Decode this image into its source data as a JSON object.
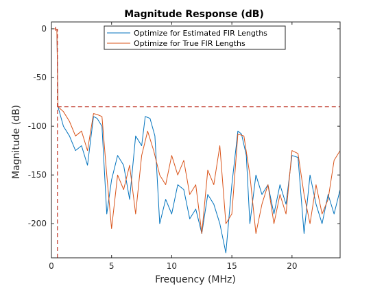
{
  "chart_data": {
    "type": "line",
    "title": "Magnitude Response (dB)",
    "xlabel": "Frequency (MHz)",
    "ylabel": "Magnitude (dB)",
    "xlim": [
      0,
      24
    ],
    "ylim": [
      -235,
      7
    ],
    "x_ticks": [
      0,
      5,
      10,
      15,
      20
    ],
    "y_ticks": [
      0,
      -50,
      -100,
      -150,
      -200
    ],
    "grid": true,
    "legend_position": "top-center",
    "series": [
      {
        "name": "Optimize for Estimated FIR Lengths",
        "color": "#0072BD",
        "x": [
          0,
          0.3,
          0.45,
          0.5,
          0.55,
          1.0,
          1.5,
          2.0,
          2.5,
          3.0,
          3.5,
          3.8,
          4.2,
          4.6,
          5.0,
          5.5,
          6.0,
          6.5,
          7.0,
          7.5,
          7.8,
          8.2,
          8.6,
          9.0,
          9.5,
          10.0,
          10.5,
          11.0,
          11.5,
          12.0,
          12.5,
          13.0,
          13.5,
          14.0,
          14.5,
          15.0,
          15.5,
          15.8,
          16.2,
          16.5,
          17.0,
          17.5,
          18.0,
          18.5,
          19.0,
          19.5,
          20.0,
          20.5,
          21.0,
          21.5,
          22.0,
          22.5,
          23.0,
          23.5,
          24.0
        ],
        "y": [
          0,
          0,
          -0.5,
          -40,
          -80,
          -100,
          -110,
          -125,
          -120,
          -140,
          -90,
          -92,
          -100,
          -190,
          -155,
          -130,
          -140,
          -175,
          -110,
          -120,
          -90,
          -92,
          -110,
          -200,
          -175,
          -190,
          -160,
          -165,
          -195,
          -185,
          -210,
          -170,
          -180,
          -200,
          -230,
          -160,
          -105,
          -108,
          -130,
          -200,
          -150,
          -170,
          -160,
          -190,
          -160,
          -180,
          -130,
          -132,
          -210,
          -150,
          -180,
          -200,
          -170,
          -190,
          -165
        ]
      },
      {
        "name": "Optimize for True FIR Lengths",
        "color": "#D95319",
        "x": [
          0,
          0.3,
          0.45,
          0.5,
          0.55,
          1.0,
          1.5,
          2.0,
          2.5,
          3.0,
          3.5,
          3.8,
          4.2,
          4.6,
          5.0,
          5.5,
          6.0,
          6.5,
          7.0,
          7.5,
          8.0,
          8.5,
          9.0,
          9.5,
          10.0,
          10.5,
          11.0,
          11.5,
          12.0,
          12.5,
          13.0,
          13.5,
          14.0,
          14.5,
          15.0,
          15.5,
          16.0,
          16.5,
          17.0,
          17.5,
          18.0,
          18.5,
          19.0,
          19.5,
          20.0,
          20.5,
          21.0,
          21.5,
          22.0,
          22.5,
          23.0,
          23.5,
          24.0
        ],
        "y": [
          0,
          0,
          -0.5,
          -40,
          -80,
          -85,
          -95,
          -110,
          -105,
          -125,
          -87,
          -88,
          -90,
          -150,
          -205,
          -150,
          -165,
          -140,
          -190,
          -130,
          -105,
          -125,
          -150,
          -160,
          -130,
          -150,
          -135,
          -170,
          -160,
          -210,
          -145,
          -160,
          -120,
          -200,
          -190,
          -108,
          -110,
          -150,
          -210,
          -180,
          -160,
          -200,
          -170,
          -190,
          -125,
          -128,
          -170,
          -200,
          -160,
          -190,
          -175,
          -135,
          -125
        ]
      }
    ],
    "annotations": [
      {
        "kind": "limit-line",
        "style": "dashed",
        "color": "#C0392B",
        "y": -80,
        "x_from": 0.5,
        "x_to": 24
      },
      {
        "kind": "limit-line",
        "style": "dashed",
        "color": "#C0392B",
        "x": 0.5,
        "y_from": -235,
        "y_to": 0
      },
      {
        "kind": "limit-line",
        "style": "dashed",
        "color": "#C0392B",
        "x": 0.35,
        "y_from": 2,
        "y_to": -2
      }
    ]
  }
}
